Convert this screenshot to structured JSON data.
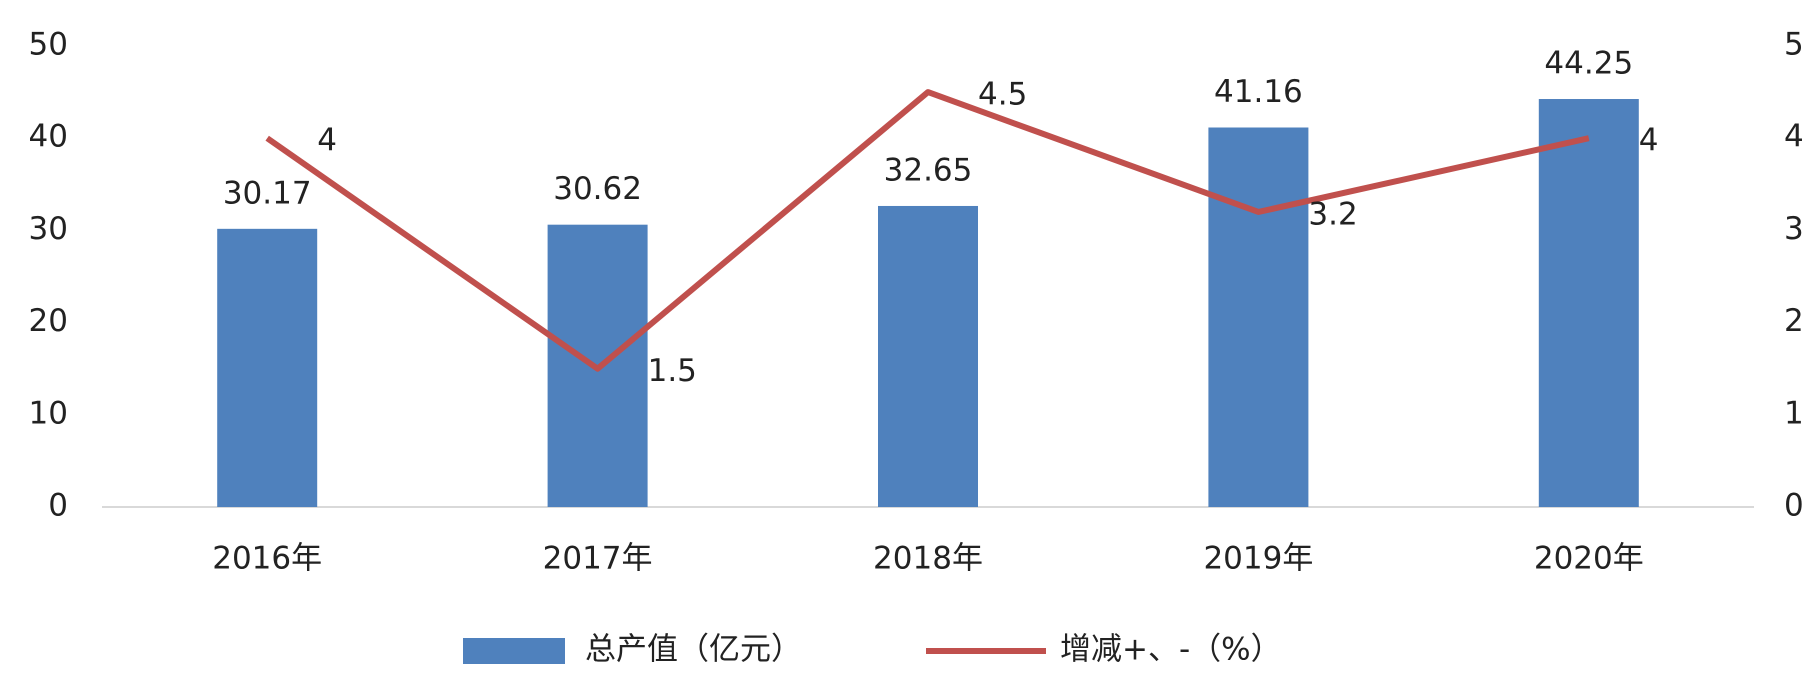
{
  "chart_data": {
    "type": "bar",
    "categories": [
      "2016年",
      "2017年",
      "2018年",
      "2019年",
      "2020年"
    ],
    "series": [
      {
        "name": "总产值（亿元）",
        "type": "bar",
        "color": "#4f81bd",
        "values": [
          30.17,
          30.62,
          32.65,
          41.16,
          44.25
        ]
      },
      {
        "name": "增减+、-（%）",
        "type": "line",
        "axis": "y2",
        "color": "#c0504d",
        "values": [
          4,
          1.5,
          4.5,
          3.2,
          4
        ]
      }
    ],
    "ylim": [
      0,
      50
    ],
    "yticks": [
      0,
      10,
      20,
      30,
      40,
      50
    ],
    "y2lim": [
      0,
      5
    ],
    "y2ticks": [
      0,
      1,
      2,
      3,
      4,
      5
    ],
    "grid": false,
    "legend": "bottom"
  }
}
